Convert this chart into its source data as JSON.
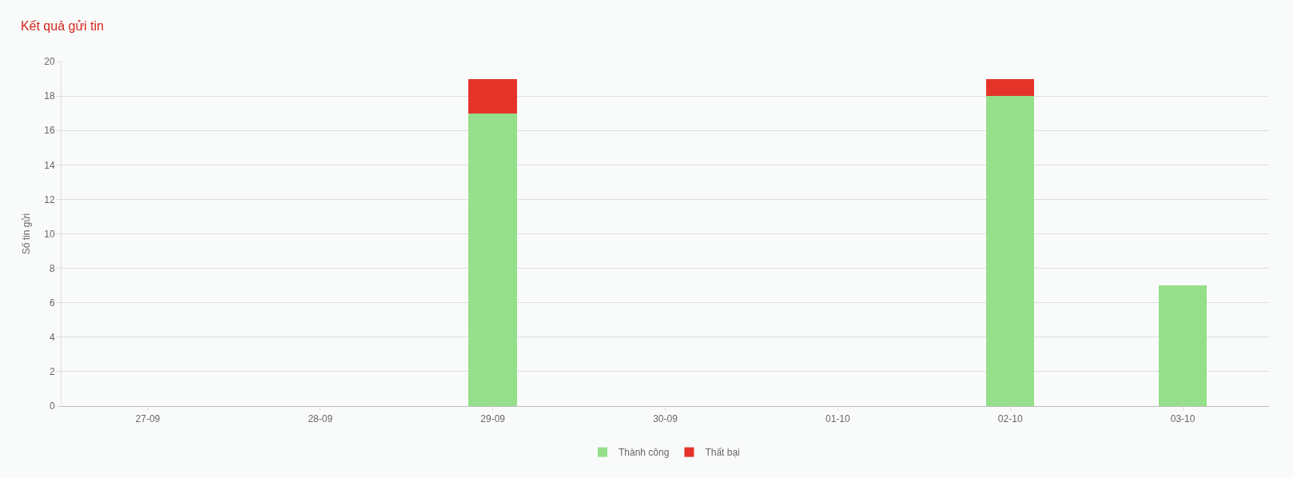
{
  "chart_data": {
    "type": "bar",
    "title": "Kết quả gửi tin",
    "ylabel": "Số tin gửi",
    "categories": [
      "27-09",
      "28-09",
      "29-09",
      "30-09",
      "01-10",
      "02-10",
      "03-10"
    ],
    "series": [
      {
        "name": "Thành công",
        "color": "#95df8a",
        "values": [
          0,
          0,
          17,
          0,
          0,
          18,
          7
        ]
      },
      {
        "name": "Thất bại",
        "color": "#e5332a",
        "values": [
          0,
          0,
          2,
          0,
          0,
          1,
          0
        ]
      }
    ],
    "stacked": true,
    "ylim": [
      0,
      20
    ],
    "yticks": [
      0,
      2,
      4,
      6,
      8,
      10,
      12,
      14,
      16,
      18,
      20
    ],
    "grid": "y",
    "legend": "bottom"
  }
}
